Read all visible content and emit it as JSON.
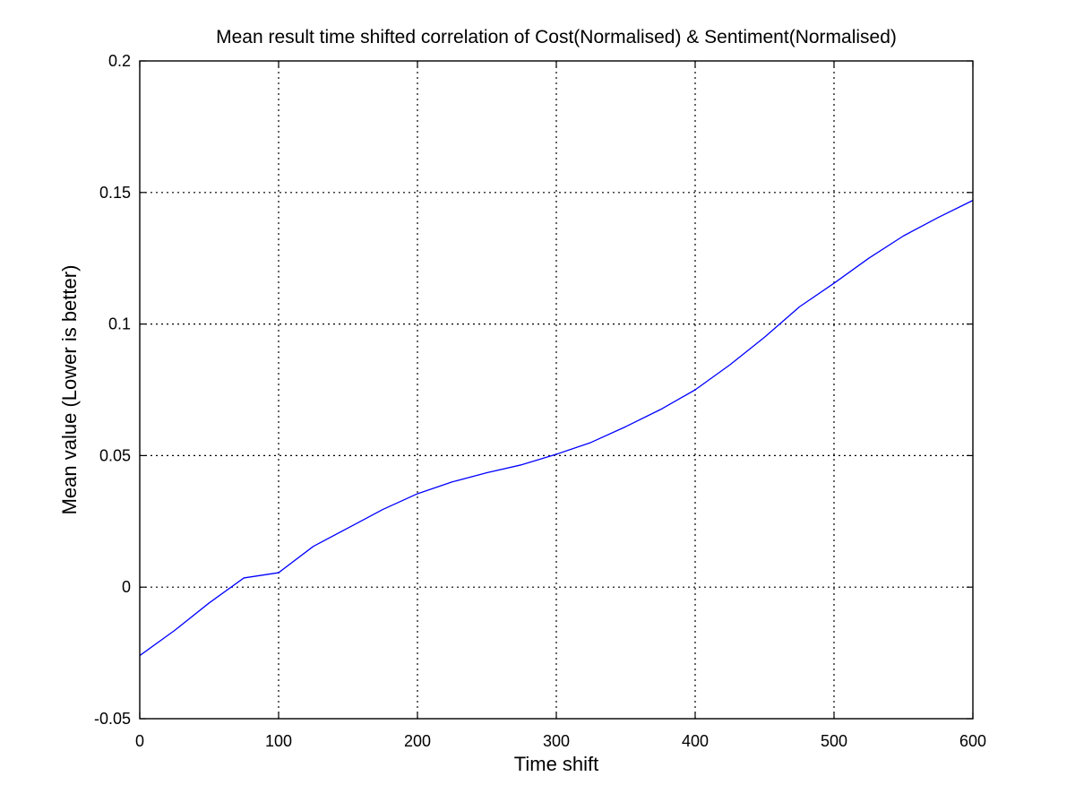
{
  "chart_data": {
    "type": "line",
    "title": "Mean result time shifted correlation of Cost(Normalised) & Sentiment(Normalised)",
    "xlabel": "Time shift",
    "ylabel": "Mean value (Lower is better)",
    "xlim": [
      0,
      600
    ],
    "ylim": [
      -0.05,
      0.2
    ],
    "xticks": [
      0,
      100,
      200,
      300,
      400,
      500,
      600
    ],
    "xtick_labels": [
      "0",
      "100",
      "200",
      "300",
      "400",
      "500",
      "600"
    ],
    "yticks": [
      -0.05,
      0,
      0.05,
      0.1,
      0.15,
      0.2
    ],
    "ytick_labels": [
      "-0.05",
      "0",
      "0.05",
      "0.1",
      "0.15",
      "0.2"
    ],
    "grid": true,
    "legend": false,
    "series": [
      {
        "color": "#0000ff",
        "x": [
          0,
          25,
          50,
          75,
          100,
          125,
          150,
          175,
          200,
          225,
          250,
          275,
          300,
          325,
          350,
          375,
          400,
          425,
          450,
          475,
          500,
          525,
          550,
          575,
          600
        ],
        "y": [
          -0.026,
          -0.0165,
          -0.006,
          0.0035,
          0.0055,
          0.0155,
          0.0225,
          0.0295,
          0.0355,
          0.04,
          0.0435,
          0.0465,
          0.0505,
          0.055,
          0.061,
          0.0675,
          0.075,
          0.0845,
          0.095,
          0.1065,
          0.1155,
          0.125,
          0.1335,
          0.1405,
          0.147
        ]
      }
    ]
  }
}
